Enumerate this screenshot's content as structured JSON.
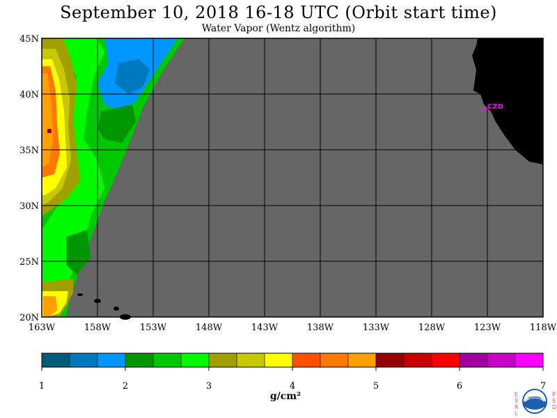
{
  "title": "September 10, 2018  16-18 UTC  (Orbit start time)",
  "subtitle": "Water Vapor (Wentz algorithm)",
  "map": {
    "lat_labels": [
      "45N",
      "40N",
      "35N",
      "30N",
      "25N",
      "20N"
    ],
    "lon_labels": [
      "163W",
      "158W",
      "153W",
      "148W",
      "143W",
      "138W",
      "133W",
      "128W",
      "123W",
      "118W"
    ],
    "station_label": "CZD",
    "station_color": "#ff00ff",
    "nodata_color": "#666666",
    "land_color": "#000000"
  },
  "colorbar": {
    "tick_labels": [
      "1",
      "2",
      "3",
      "4",
      "5",
      "6",
      "7"
    ],
    "colors": [
      "#005a7a",
      "#0078be",
      "#0096ff",
      "#009600",
      "#00c800",
      "#00fa00",
      "#a0a000",
      "#c8c800",
      "#ffff00",
      "#ff5000",
      "#ff7800",
      "#ffa000",
      "#960000",
      "#c80000",
      "#ff0000",
      "#a000a0",
      "#c800c8",
      "#ff00ff"
    ],
    "units": "g/cm²"
  },
  "logo": {
    "left_text": [
      "E",
      "S",
      "R",
      "L"
    ],
    "center_text": "NOAA",
    "right_text": [
      "P",
      "S",
      "D"
    ]
  }
}
